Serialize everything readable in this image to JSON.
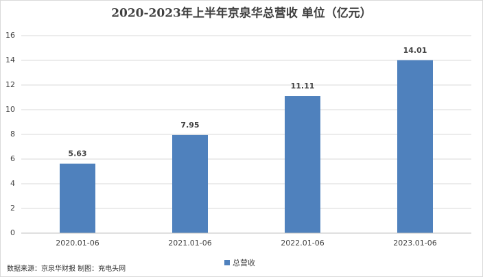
{
  "chart_data": {
    "type": "bar",
    "title": "2020-2023年上半年京泉华总营收 单位（亿元）",
    "categories": [
      "2020.01-06",
      "2021.01-06",
      "2022.01-06",
      "2023.01-06"
    ],
    "series": [
      {
        "name": "总营收",
        "color": "#4f81bd",
        "values": [
          5.63,
          7.95,
          11.11,
          14.01
        ]
      }
    ],
    "ylim": [
      0,
      16
    ],
    "yticks": [
      0,
      2,
      4,
      6,
      8,
      10,
      12,
      14,
      16
    ],
    "grid": true,
    "legend": "bottom",
    "source": "数据来源：京泉华财报  制图：充电头网"
  }
}
